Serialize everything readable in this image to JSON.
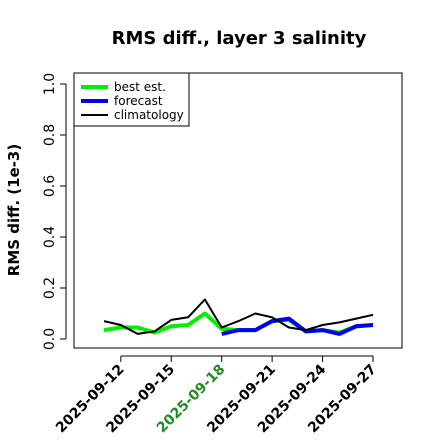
{
  "chart_data": {
    "type": "line",
    "title": "RMS diff., layer 3 salinity",
    "xlabel": "",
    "ylabel": "RMS diff. (1e-3)",
    "ylim": [
      0.0,
      1.0
    ],
    "yticks": [
      "0.0",
      "0.2",
      "0.4",
      "0.6",
      "0.8",
      "1.0"
    ],
    "x": [
      "2025-09-11",
      "2025-09-12",
      "2025-09-13",
      "2025-09-14",
      "2025-09-15",
      "2025-09-16",
      "2025-09-17",
      "2025-09-18",
      "2025-09-19",
      "2025-09-20",
      "2025-09-21",
      "2025-09-22",
      "2025-09-23",
      "2025-09-24",
      "2025-09-25",
      "2025-09-26",
      "2025-09-27"
    ],
    "xticks": [
      "2025-09-12",
      "2025-09-15",
      "2025-09-18",
      "2025-09-21",
      "2025-09-24",
      "2025-09-27"
    ],
    "highlight_tick": "2025-09-18",
    "highlight_color": "#228B22",
    "legend_position": "top-left",
    "grid": false,
    "series": [
      {
        "name": "best est.",
        "color": "#00ee00",
        "values": [
          0.035,
          0.045,
          0.045,
          0.025,
          0.05,
          0.055,
          0.1,
          0.04,
          0.035,
          0.035,
          0.07,
          0.075,
          0.03,
          0.035,
          0.025,
          0.05,
          0.055
        ]
      },
      {
        "name": "forecast",
        "color": "#0000ee",
        "values": [
          null,
          null,
          null,
          null,
          null,
          null,
          null,
          0.02,
          0.035,
          0.035,
          0.07,
          0.08,
          0.03,
          0.035,
          0.02,
          0.05,
          0.055
        ]
      },
      {
        "name": "climatology",
        "color": "#000000",
        "values": [
          0.07,
          0.055,
          0.02,
          0.03,
          0.075,
          0.085,
          0.155,
          0.045,
          0.07,
          0.1,
          0.085,
          0.045,
          0.035,
          0.055,
          0.065,
          0.08,
          0.095
        ]
      }
    ]
  }
}
